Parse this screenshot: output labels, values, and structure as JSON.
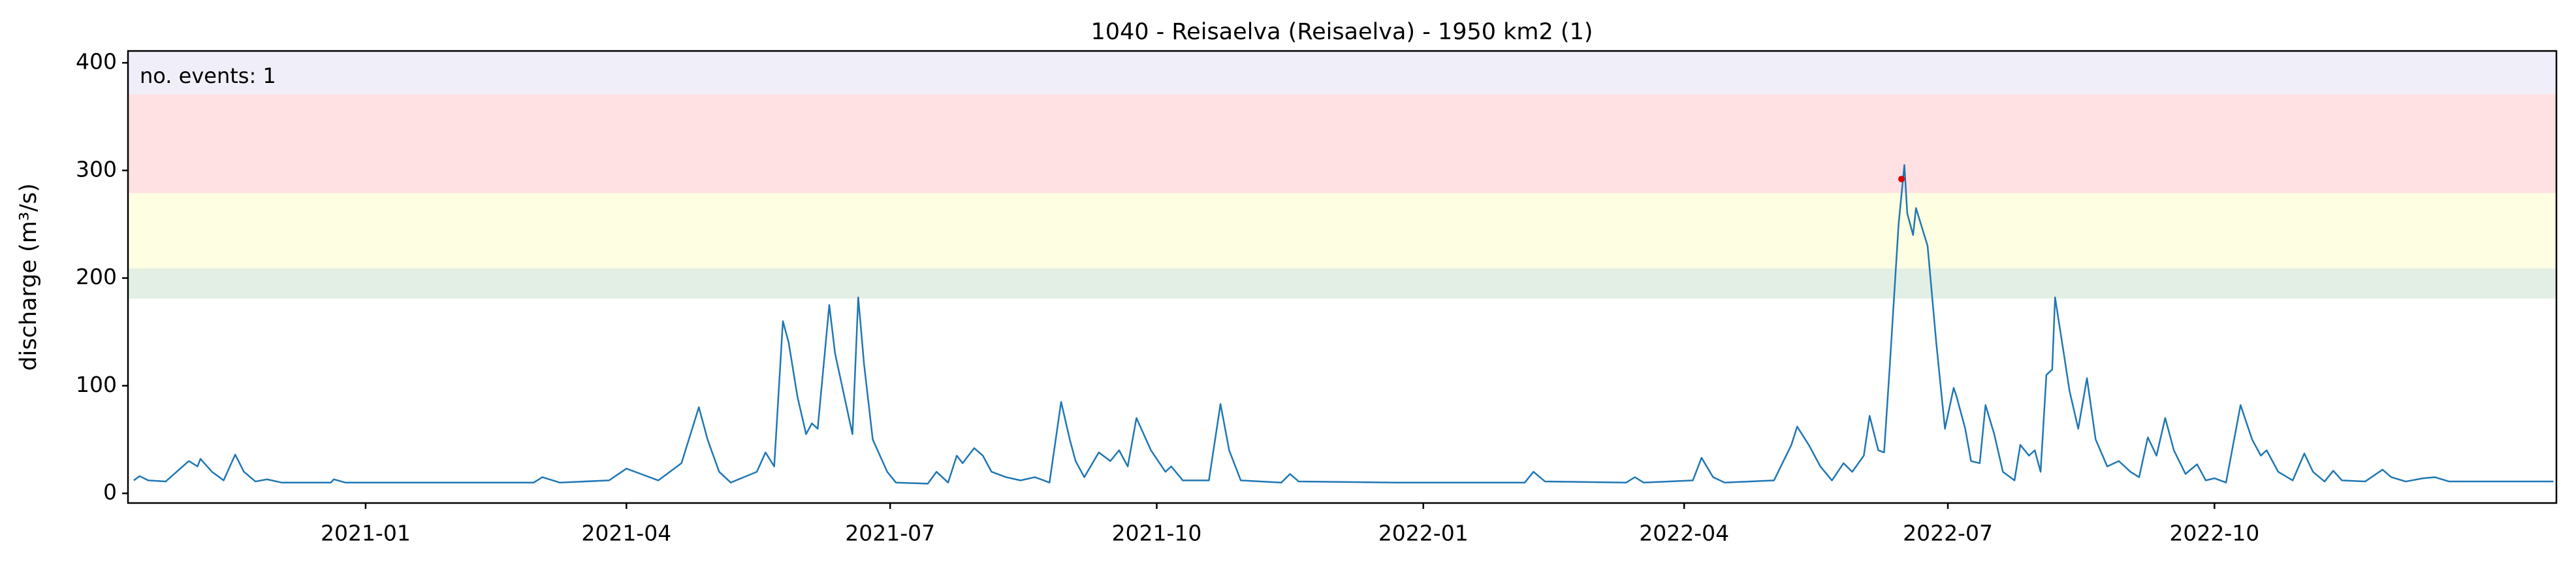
{
  "chart_data": {
    "type": "line",
    "title": "1040 - Reisaelva (Reisaelva) - 1950 km2 (1)",
    "ylabel": "discharge (m³/s)",
    "annotation": "no. events: 1",
    "annotation_color": "#e00000",
    "color": "#1f77b4",
    "x": [
      "2020-10-13",
      "2020-10-15",
      "2020-10-18",
      "2020-10-24",
      "2020-11-01",
      "2020-11-04",
      "2020-11-05",
      "2020-11-09",
      "2020-11-13",
      "2020-11-16",
      "2020-11-17",
      "2020-11-20",
      "2020-11-24",
      "2020-11-28",
      "2020-12-03",
      "2020-12-20",
      "2020-12-21",
      "2020-12-25",
      "2021-02-28",
      "2021-03-03",
      "2021-03-09",
      "2021-03-26",
      "2021-04-01",
      "2021-04-06",
      "2021-04-12",
      "2021-04-20",
      "2021-04-26",
      "2021-04-29",
      "2021-05-03",
      "2021-05-07",
      "2021-05-16",
      "2021-05-19",
      "2021-05-22",
      "2021-05-25",
      "2021-05-27",
      "2021-05-30",
      "2021-06-02",
      "2021-06-04",
      "2021-06-06",
      "2021-06-10",
      "2021-06-12",
      "2021-06-16",
      "2021-06-18",
      "2021-06-20",
      "2021-06-22",
      "2021-06-25",
      "2021-06-30",
      "2021-07-03",
      "2021-07-14",
      "2021-07-17",
      "2021-07-21",
      "2021-07-24",
      "2021-07-26",
      "2021-07-30",
      "2021-08-02",
      "2021-08-05",
      "2021-08-10",
      "2021-08-15",
      "2021-08-20",
      "2021-08-25",
      "2021-08-29",
      "2021-09-01",
      "2021-09-03",
      "2021-09-06",
      "2021-09-11",
      "2021-09-15",
      "2021-09-18",
      "2021-09-21",
      "2021-09-24",
      "2021-09-29",
      "2021-10-04",
      "2021-10-06",
      "2021-10-10",
      "2021-10-19",
      "2021-10-23",
      "2021-10-26",
      "2021-10-30",
      "2021-11-13",
      "2021-11-16",
      "2021-11-19",
      "2021-12-23",
      "2022-02-05",
      "2022-02-08",
      "2022-02-12",
      "2022-03-12",
      "2022-03-15",
      "2022-03-18",
      "2022-04-04",
      "2022-04-07",
      "2022-04-11",
      "2022-04-15",
      "2022-05-02",
      "2022-05-08",
      "2022-05-10",
      "2022-05-14",
      "2022-05-18",
      "2022-05-22",
      "2022-05-26",
      "2022-05-29",
      "2022-06-02",
      "2022-06-04",
      "2022-06-07",
      "2022-06-09",
      "2022-06-11",
      "2022-06-14",
      "2022-06-16",
      "2022-06-17",
      "2022-06-19",
      "2022-06-20",
      "2022-06-24",
      "2022-06-27",
      "2022-06-30",
      "2022-07-03",
      "2022-07-04",
      "2022-07-07",
      "2022-07-09",
      "2022-07-12",
      "2022-07-14",
      "2022-07-17",
      "2022-07-20",
      "2022-07-24",
      "2022-07-26",
      "2022-07-29",
      "2022-07-31",
      "2022-08-02",
      "2022-08-04",
      "2022-08-06",
      "2022-08-07",
      "2022-08-10",
      "2022-08-12",
      "2022-08-15",
      "2022-08-18",
      "2022-08-21",
      "2022-08-25",
      "2022-08-29",
      "2022-09-02",
      "2022-09-05",
      "2022-09-08",
      "2022-09-11",
      "2022-09-14",
      "2022-09-17",
      "2022-09-21",
      "2022-09-25",
      "2022-09-28",
      "2022-10-01",
      "2022-10-05",
      "2022-10-10",
      "2022-10-14",
      "2022-10-17",
      "2022-10-19",
      "2022-10-23",
      "2022-10-28",
      "2022-11-01",
      "2022-11-04",
      "2022-11-08",
      "2022-11-11",
      "2022-11-14",
      "2022-11-22",
      "2022-11-28",
      "2022-12-01",
      "2022-12-06",
      "2022-12-12",
      "2022-12-16",
      "2022-12-21",
      "2023-01-26"
    ],
    "values": [
      12,
      16,
      12,
      11,
      30,
      25,
      32,
      20,
      12,
      30,
      36,
      20,
      11,
      13,
      10,
      10,
      13,
      10,
      10,
      15,
      10,
      12,
      23,
      18,
      12,
      28,
      80,
      50,
      20,
      10,
      20,
      38,
      25,
      160,
      140,
      90,
      55,
      65,
      60,
      175,
      130,
      80,
      55,
      182,
      120,
      50,
      20,
      10,
      9,
      20,
      10,
      35,
      28,
      42,
      35,
      20,
      15,
      12,
      15,
      10,
      85,
      50,
      30,
      15,
      38,
      30,
      40,
      25,
      70,
      40,
      20,
      25,
      12,
      12,
      83,
      40,
      12,
      10,
      18,
      11,
      10,
      10,
      20,
      11,
      10,
      15,
      10,
      12,
      33,
      15,
      10,
      12,
      45,
      62,
      45,
      25,
      12,
      28,
      20,
      35,
      72,
      40,
      38,
      120,
      250,
      305,
      260,
      240,
      265,
      230,
      140,
      60,
      98,
      90,
      60,
      30,
      28,
      82,
      55,
      20,
      12,
      45,
      35,
      40,
      20,
      110,
      115,
      182,
      130,
      95,
      60,
      107,
      50,
      25,
      30,
      20,
      15,
      52,
      35,
      70,
      40,
      18,
      27,
      12,
      14,
      10,
      82,
      50,
      35,
      40,
      20,
      12,
      37,
      20,
      11,
      21,
      12,
      11,
      22,
      15,
      11,
      14,
      15,
      11,
      11
    ],
    "events": {
      "x": [
        "2022-06-15"
      ],
      "values": [
        292
      ],
      "color": "#e00000"
    },
    "bands": [
      {
        "from": 181,
        "to": 209,
        "color": "#e3efe4"
      },
      {
        "from": 209,
        "to": 279,
        "color": "#fefee2"
      },
      {
        "from": 279,
        "to": 371,
        "color": "#ffe0e3"
      },
      {
        "from": 371,
        "to": 411,
        "color": "#f0eff9"
      }
    ],
    "xlim": [
      "2020-10-11",
      "2023-01-27"
    ],
    "ylim": [
      -9,
      411
    ],
    "yticks": [
      0,
      100,
      200,
      300,
      400
    ],
    "xticks": [
      {
        "value": "2021-01-01",
        "label": "2021-01"
      },
      {
        "value": "2021-04-01",
        "label": "2021-04"
      },
      {
        "value": "2021-07-01",
        "label": "2021-07"
      },
      {
        "value": "2021-10-01",
        "label": "2021-10"
      },
      {
        "value": "2022-01-01",
        "label": "2022-01"
      },
      {
        "value": "2022-04-01",
        "label": "2022-04"
      },
      {
        "value": "2022-07-01",
        "label": "2022-07"
      },
      {
        "value": "2022-10-01",
        "label": "2022-10"
      }
    ],
    "grid": false
  }
}
